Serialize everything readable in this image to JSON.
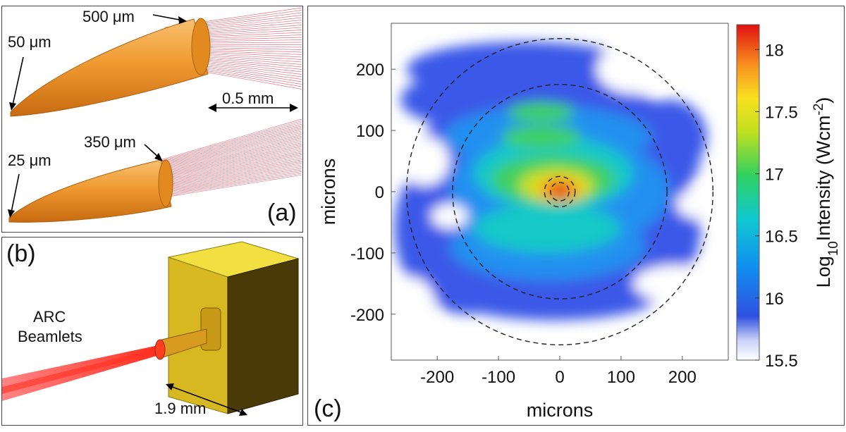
{
  "panel_a": {
    "label": "(a)",
    "top_cone": {
      "tip_label": "50 μm",
      "base_label": "500 μm",
      "scale_label": "0.5 mm"
    },
    "bottom_cone": {
      "tip_label": "25 μm",
      "base_label": "350 μm"
    }
  },
  "panel_b": {
    "label": "(b)",
    "beam_label_line1": "ARC",
    "beam_label_line2": "Beamlets",
    "scale_label": "1.9 mm"
  },
  "panel_c": {
    "label": "(c)",
    "xlabel": "microns",
    "ylabel": "microns",
    "colorbar_label": "Log10Intensity (Wcm-2)",
    "colorbar_label_parts": {
      "pre": "Log",
      "sub": "10",
      "mid": "Intensity (Wcm",
      "sup": "-2",
      "post": ")"
    },
    "x_ticks": [
      "-200",
      "-100",
      "0",
      "100",
      "200"
    ],
    "y_ticks": [
      "200",
      "100",
      "0",
      "-100",
      "-200"
    ],
    "cb_ticks": [
      "18",
      "17.5",
      "17",
      "16.5",
      "16",
      "15.5"
    ]
  },
  "chart_data": {
    "type": "heatmap",
    "title": "",
    "xlabel": "microns",
    "ylabel": "microns",
    "xlim": [
      -275,
      275
    ],
    "ylim": [
      -275,
      275
    ],
    "x_ticks": [
      -200,
      -100,
      0,
      100,
      200
    ],
    "y_ticks": [
      -200,
      -100,
      0,
      100,
      200
    ],
    "colorbar": {
      "label": "Log10Intensity (Wcm-2)",
      "range": [
        15.5,
        18.2
      ],
      "ticks": [
        15.5,
        16,
        16.5,
        17,
        17.5,
        18
      ],
      "colormap": "jet"
    },
    "dashed_circle_radii_microns": [
      250,
      175,
      25,
      15
    ],
    "peak": {
      "x": 0,
      "y": 0,
      "log10_intensity": 18.2
    },
    "grid": false,
    "legend": "none"
  },
  "colors": {
    "cone": "#f0a030",
    "beam": "#e02020",
    "target": "#e6c020",
    "frame": "#444444"
  }
}
